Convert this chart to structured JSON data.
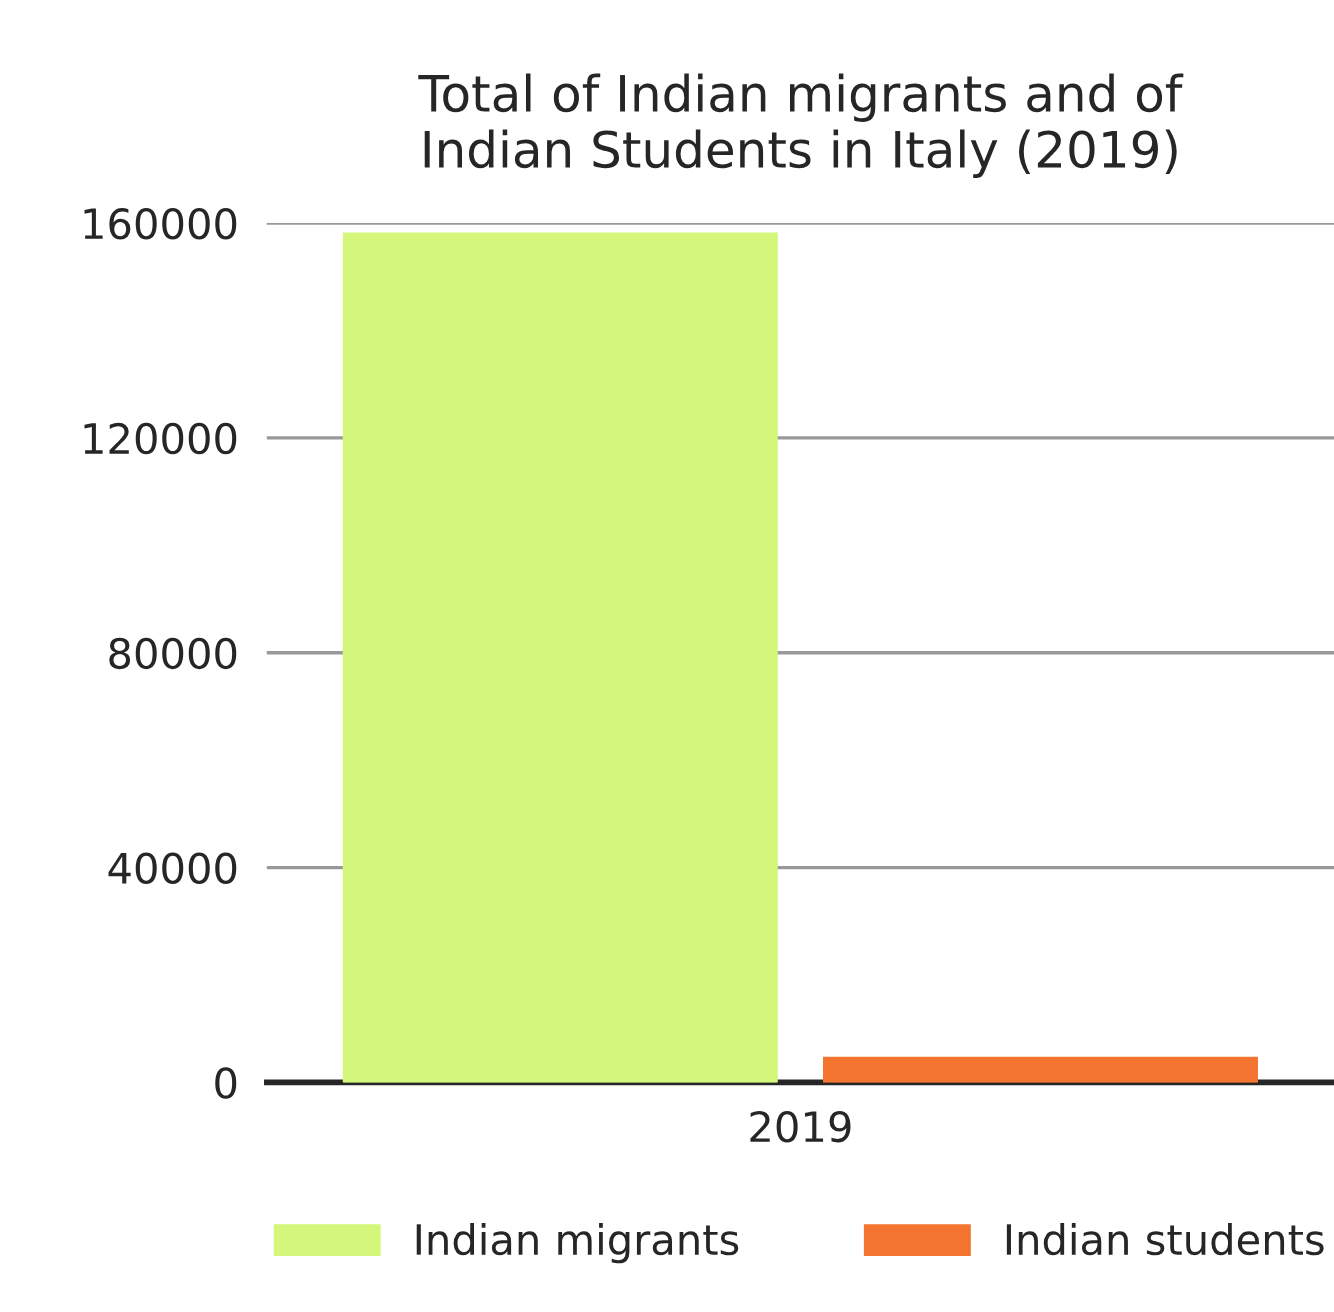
{
  "chart_data": {
    "type": "bar",
    "title": "Total of Indian migrants and of\nIndian Students in Italy (2019)",
    "categories": [
      "2019"
    ],
    "series": [
      {
        "name": "Indian migrants",
        "color": "#d4f67a",
        "values": [
          158000
        ]
      },
      {
        "name": "Indian students",
        "color": "#f47530",
        "values": [
          4500
        ]
      }
    ],
    "ylim": [
      0,
      160000
    ],
    "yticks": [
      0,
      40000,
      80000,
      120000,
      160000
    ],
    "grid": "y",
    "legend": "bottom"
  }
}
